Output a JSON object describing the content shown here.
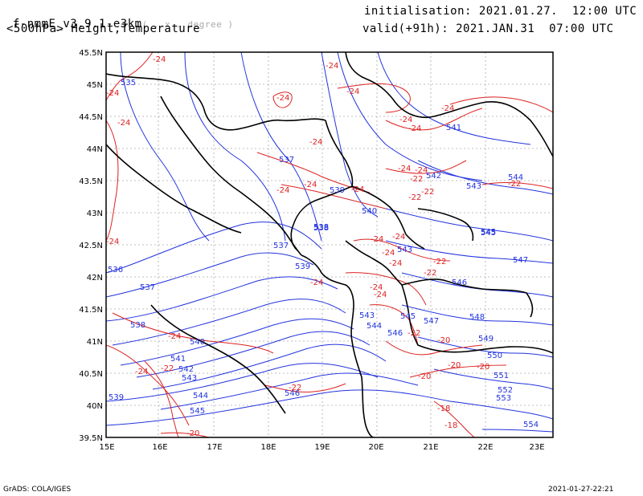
{
  "header": {
    "model": "f-nmmE_v3.9.1-e3km",
    "model_note": "( . x . degree )",
    "level_title": "<500hPa> Height,Temperature",
    "init": "initialisation: 2021.01.27.  12:00 UTC",
    "valid": "valid(+91h): 2021.JAN.31  07:00 UTC"
  },
  "footer": {
    "credit": "GrADS: COLA/IGES",
    "timestamp": "2021-01-27-22:21"
  },
  "map": {
    "lat_labels": [
      "45.5N",
      "45N",
      "44.5N",
      "44N",
      "43.5N",
      "43N",
      "42.5N",
      "42N",
      "41.5N",
      "41N",
      "40.5N",
      "40N",
      "39.5N"
    ],
    "lon_labels": [
      "15E",
      "16E",
      "17E",
      "18E",
      "19E",
      "20E",
      "21E",
      "22E",
      "23E"
    ],
    "colors": {
      "height": "#2233dd",
      "temperature": "#dd2222",
      "border": "#000000",
      "grid": "#aaaaaa"
    },
    "height_labels": [
      "535",
      "537",
      "538",
      "537",
      "536",
      "537",
      "538",
      "539",
      "540",
      "541",
      "542",
      "543",
      "544",
      "545",
      "546",
      "539",
      "538",
      "539",
      "540",
      "541",
      "542",
      "543",
      "544",
      "543",
      "545",
      "546",
      "547",
      "543",
      "544",
      "545",
      "546",
      "547",
      "548",
      "549",
      "550",
      "551",
      "552",
      "553",
      "554",
      "545"
    ],
    "temperature_labels": [
      "-24",
      "-24",
      "-24",
      "-24",
      "-24",
      "-24",
      "-24",
      "-24",
      "-24",
      "-24",
      "-24",
      "-24",
      "-24",
      "-24",
      "-22",
      "-22",
      "-24",
      "-24",
      "-24",
      "-22",
      "-24",
      "-22",
      "-20",
      "-20",
      "-20",
      "-20",
      "-22",
      "-18",
      "-18",
      "-20",
      "-22",
      "-24",
      "-22",
      "-24",
      "-24",
      "-24",
      "-22",
      "-24",
      "-24",
      "-22",
      "-24"
    ]
  }
}
